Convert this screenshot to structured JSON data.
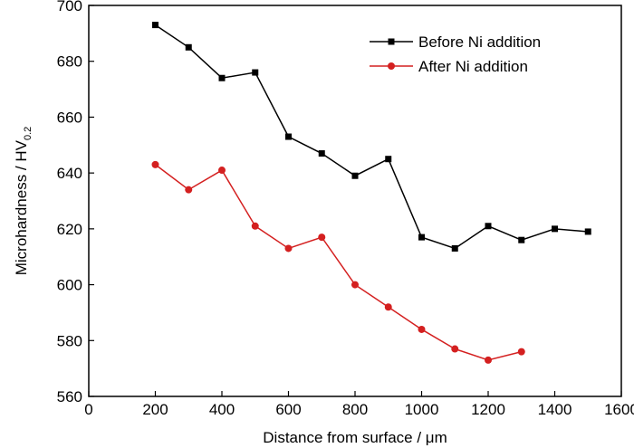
{
  "chart_data": {
    "type": "line",
    "xlabel": "Distance from surface / μm",
    "ylabel": "Microhardness / HV",
    "ylabel_subscript": "0.2",
    "xlim": [
      0,
      1600
    ],
    "ylim": [
      560,
      700
    ],
    "xticks": [
      0,
      200,
      400,
      600,
      800,
      1000,
      1200,
      1400,
      1600
    ],
    "yticks": [
      560,
      580,
      600,
      620,
      640,
      660,
      680,
      700
    ],
    "grid": false,
    "legend_position": "top-right",
    "series": [
      {
        "name": "Before Ni addition",
        "color": "#000000",
        "marker": "square",
        "x": [
          200,
          300,
          400,
          500,
          600,
          700,
          800,
          900,
          1000,
          1100,
          1200,
          1300,
          1400,
          1500
        ],
        "y": [
          693,
          685,
          674,
          676,
          653,
          647,
          639,
          645,
          617,
          613,
          621,
          616,
          620,
          619
        ]
      },
      {
        "name": "After Ni addition",
        "color": "#d42020",
        "marker": "circle",
        "x": [
          200,
          300,
          400,
          500,
          600,
          700,
          800,
          900,
          1000,
          1100,
          1200,
          1300
        ],
        "y": [
          643,
          634,
          641,
          621,
          613,
          617,
          600,
          592,
          584,
          577,
          573,
          576
        ]
      }
    ]
  }
}
